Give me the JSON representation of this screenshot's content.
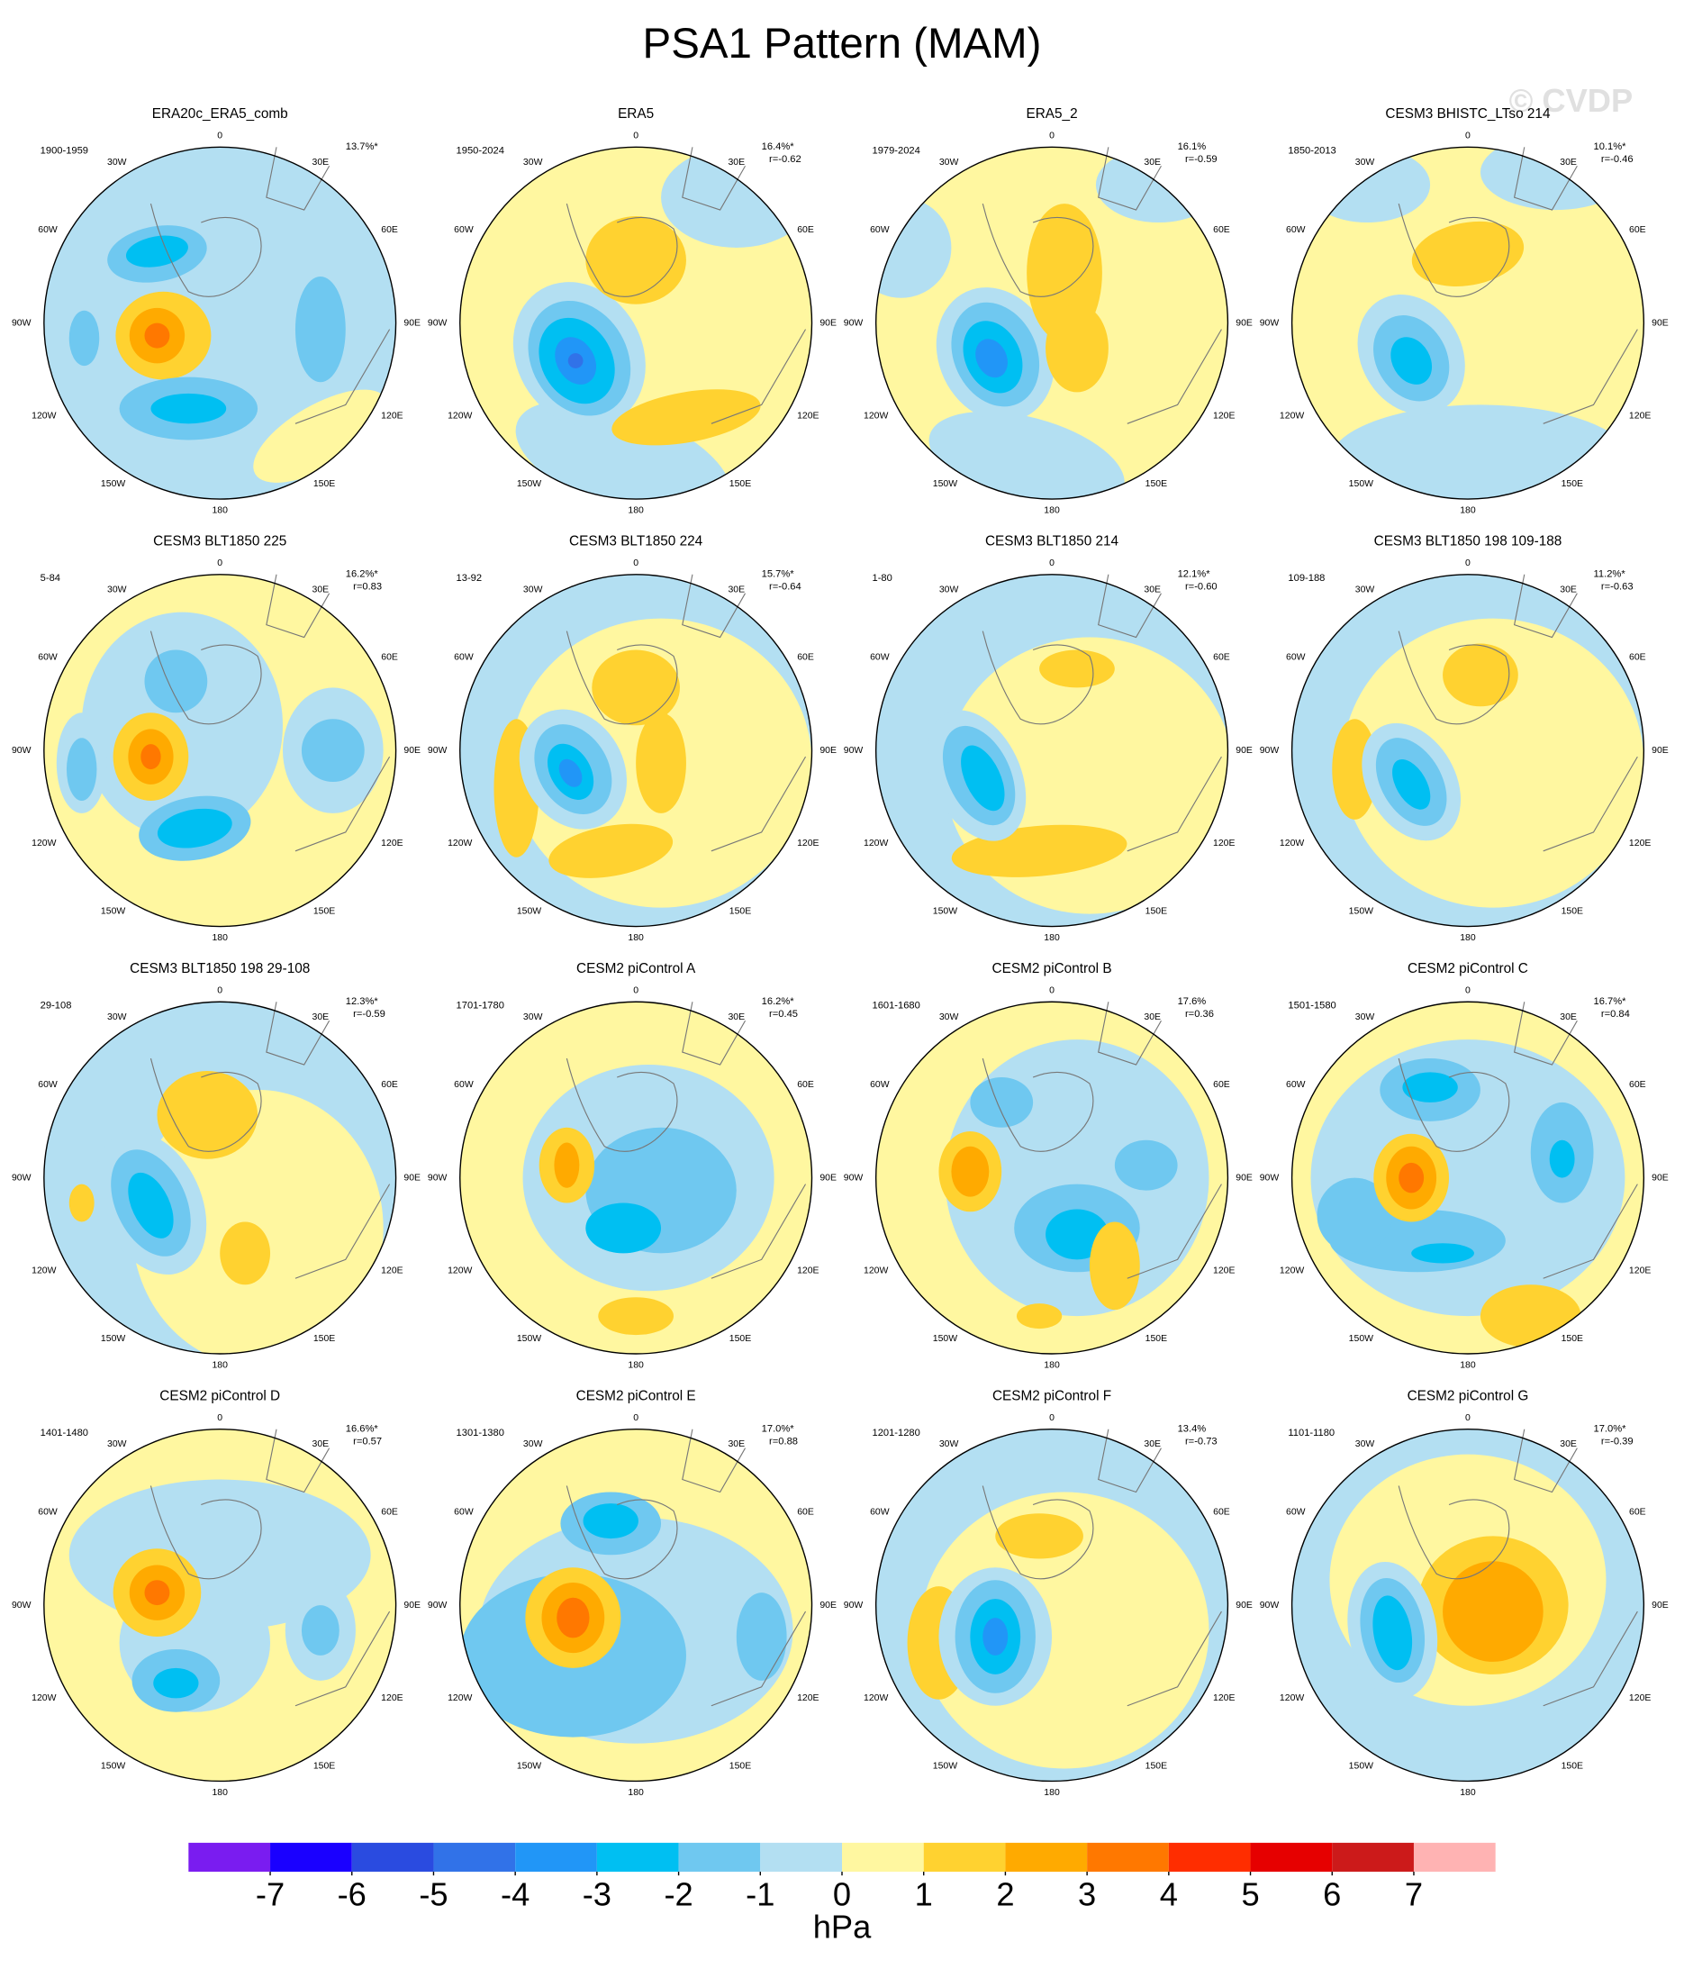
{
  "title": "PSA1 Pattern (MAM)",
  "watermark": "© CVDP",
  "longitude_labels": {
    "lon0": "0",
    "lon30e": "30E",
    "lon60e": "60E",
    "lon90e": "90E",
    "lon120e": "120E",
    "lon150e": "150E",
    "lon180": "180",
    "lon150w": "150W",
    "lon120w": "120W",
    "lon90w": "90W",
    "lon60w": "60W",
    "lon30w": "30W"
  },
  "panels": [
    {
      "title": "ERA20c_ERA5_comb",
      "period": "1900-1959",
      "pct": "13.7%*"
    },
    {
      "title": "ERA5",
      "period": "1950-2024",
      "pct": "16.4%*",
      "r": "r=-0.62"
    },
    {
      "title": "ERA5_2",
      "period": "1979-2024",
      "pct": "16.1%",
      "r": "r=-0.59"
    },
    {
      "title": "CESM3 BHISTC_LTso 214",
      "period": "1850-2013",
      "pct": "10.1%*",
      "r": "r=-0.46"
    },
    {
      "title": "CESM3 BLT1850 225",
      "period": "5-84",
      "pct": "16.2%*",
      "r": "r=0.83"
    },
    {
      "title": "CESM3 BLT1850 224",
      "period": "13-92",
      "pct": "15.7%*",
      "r": "r=-0.64"
    },
    {
      "title": "CESM3 BLT1850 214",
      "period": "1-80",
      "pct": "12.1%*",
      "r": "r=-0.60"
    },
    {
      "title": "CESM3 BLT1850 198 109-188",
      "period": "109-188",
      "pct": "11.2%*",
      "r": "r=-0.63"
    },
    {
      "title": "CESM3 BLT1850 198 29-108",
      "period": "29-108",
      "pct": "12.3%*",
      "r": "r=-0.59"
    },
    {
      "title": "CESM2 piControl A",
      "period": "1701-1780",
      "pct": "16.2%*",
      "r": "r=0.45"
    },
    {
      "title": "CESM2 piControl B",
      "period": "1601-1680",
      "pct": "17.6%",
      "r": "r=0.36"
    },
    {
      "title": "CESM2 piControl C",
      "period": "1501-1580",
      "pct": "16.7%*",
      "r": "r=0.84"
    },
    {
      "title": "CESM2 piControl D",
      "period": "1401-1480",
      "pct": "16.6%*",
      "r": "r=0.57"
    },
    {
      "title": "CESM2 piControl E",
      "period": "1301-1380",
      "pct": "17.0%*",
      "r": "r=0.88"
    },
    {
      "title": "CESM2 piControl F",
      "period": "1201-1280",
      "pct": "13.4%",
      "r": "r=-0.73"
    },
    {
      "title": "CESM2 piControl G",
      "period": "1101-1180",
      "pct": "17.0%*",
      "r": "r=-0.39"
    }
  ],
  "colorbar": {
    "colors": [
      "#7a1cf0",
      "#1a00ff",
      "#2a4be0",
      "#3172e8",
      "#2196f7",
      "#00bff2",
      "#6fc8f0",
      "#b3dff2",
      "#fff7a0",
      "#ffd230",
      "#ffaa00",
      "#ff7800",
      "#ff2d00",
      "#e60000",
      "#cc1a1a",
      "#ffb3b3"
    ],
    "ticks": [
      -7,
      -6,
      -5,
      -4,
      -3,
      -2,
      -1,
      0,
      1,
      2,
      3,
      4,
      5,
      6,
      7
    ],
    "unit": "hPa"
  }
}
